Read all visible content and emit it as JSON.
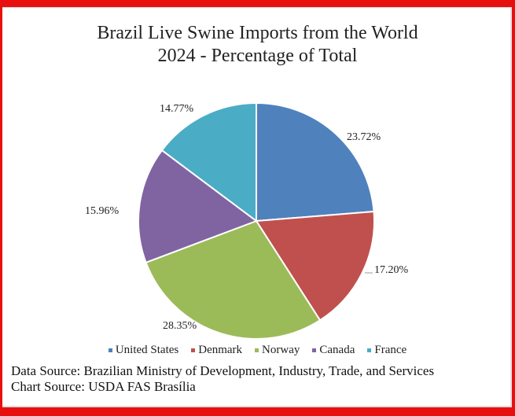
{
  "chart_data": {
    "type": "pie",
    "title": "Brazil Live Swine Imports from the World",
    "subtitle": "2024 - Percentage of Total",
    "categories": [
      "United States",
      "Denmark",
      "Norway",
      "Canada",
      "France"
    ],
    "values": [
      23.72,
      17.2,
      28.35,
      15.96,
      14.77
    ],
    "labels": [
      "23.72%",
      "17.20%",
      "28.35%",
      "15.96%",
      "14.77%"
    ],
    "colors": [
      "#4F81BD",
      "#C0504D",
      "#9BBB59",
      "#8064A2",
      "#4BACC6"
    ],
    "legend_position": "bottom",
    "start_angle": "top, clockwise"
  },
  "footer": {
    "data_source": "Data Source: Brazilian Ministry of Development, Industry, Trade, and Services",
    "chart_source": "Chart Source: USDA FAS Brasília"
  }
}
